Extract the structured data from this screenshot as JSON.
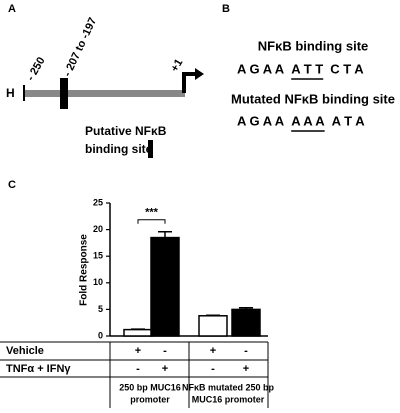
{
  "panel_a": {
    "label": "A",
    "strand": "H",
    "positions": [
      "- 250",
      "- 207 to -197",
      "+1"
    ],
    "legend": [
      "Putative NFκB",
      "binding site"
    ]
  },
  "panel_b": {
    "label": "B",
    "underline_part": 1,
    "sequences": [
      {
        "title": "NFκB binding site",
        "parts": [
          "A G A A",
          "A T T",
          "C T A"
        ]
      },
      {
        "title": "Mutated NFκB binding site",
        "parts": [
          "A G A A",
          "A A A",
          "A T A"
        ]
      }
    ]
  },
  "chart_data": {
    "type": "bar",
    "label": "C",
    "ylabel": "Fold Response",
    "categories": [
      null,
      null,
      null,
      null
    ],
    "values": [
      1.2,
      18.5,
      3.8,
      5.0
    ],
    "errors": [
      0.1,
      1.1,
      0.1,
      0.3
    ],
    "colors": [
      "#ffffff",
      "#000000",
      "#ffffff",
      "#000000"
    ],
    "ylim": [
      0,
      25
    ],
    "yticks": [
      0,
      5,
      10,
      15,
      20,
      25
    ],
    "significance": {
      "text": "***",
      "between": [
        0,
        1
      ]
    },
    "table": {
      "rows": [
        {
          "label": "Vehicle",
          "values": [
            "+",
            "-",
            "+",
            "-"
          ]
        },
        {
          "label": "TNFα + IFNγ",
          "values": [
            "-",
            "+",
            "-",
            "+"
          ]
        }
      ],
      "groups": [
        [
          "250 bp MUC16",
          "promoter"
        ],
        [
          "NFκB mutated 250 bp",
          "MUC16 promoter"
        ]
      ]
    }
  }
}
